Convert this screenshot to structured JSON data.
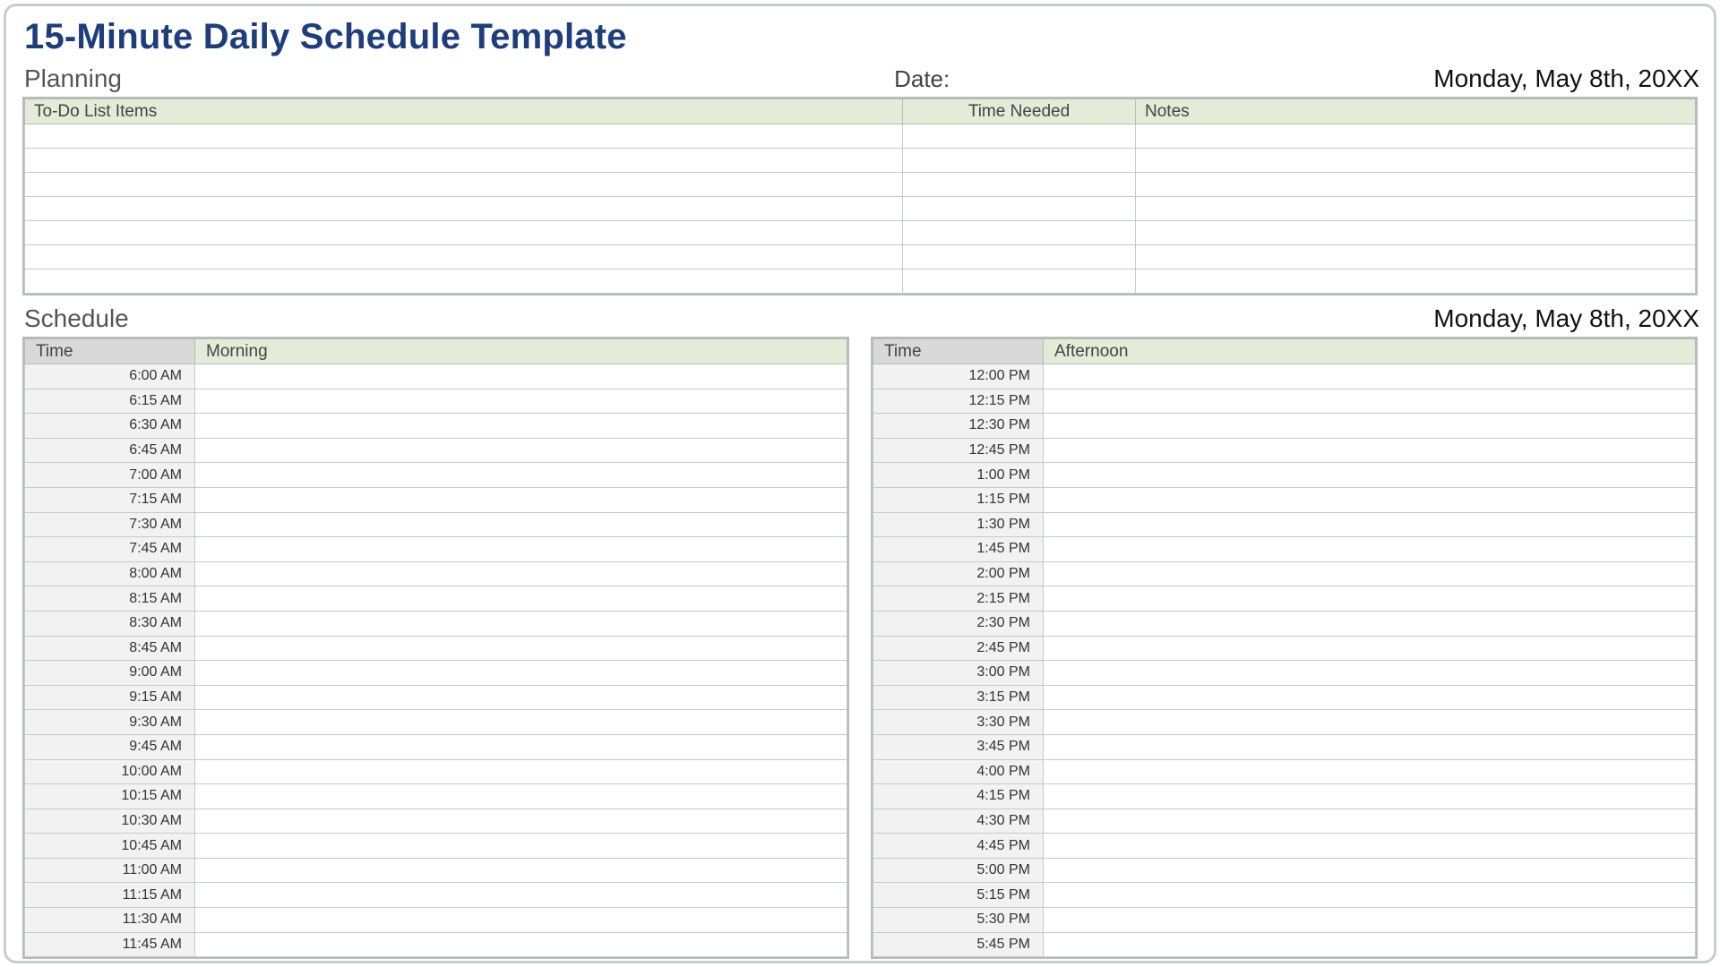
{
  "title": "15-Minute Daily Schedule Template",
  "sections": {
    "planning": "Planning",
    "schedule": "Schedule"
  },
  "date_label": "Date:",
  "date_value": "Monday, May 8th, 20XX",
  "todo": {
    "columns": {
      "items": "To-Do List Items",
      "time": "Time Needed",
      "notes": "Notes"
    },
    "row_count": 7
  },
  "schedule": {
    "time_header": "Time",
    "morning_label": "Morning",
    "afternoon_label": "Afternoon",
    "morning": [
      "6:00 AM",
      "6:15 AM",
      "6:30 AM",
      "6:45 AM",
      "7:00 AM",
      "7:15 AM",
      "7:30 AM",
      "7:45 AM",
      "8:00 AM",
      "8:15 AM",
      "8:30 AM",
      "8:45 AM",
      "9:00 AM",
      "9:15 AM",
      "9:30 AM",
      "9:45 AM",
      "10:00 AM",
      "10:15 AM",
      "10:30 AM",
      "10:45 AM",
      "11:00 AM",
      "11:15 AM",
      "11:30 AM",
      "11:45 AM"
    ],
    "afternoon": [
      "12:00 PM",
      "12:15 PM",
      "12:30 PM",
      "12:45 PM",
      "1:00 PM",
      "1:15 PM",
      "1:30 PM",
      "1:45 PM",
      "2:00 PM",
      "2:15 PM",
      "2:30 PM",
      "2:45 PM",
      "3:00 PM",
      "3:15 PM",
      "3:30 PM",
      "3:45 PM",
      "4:00 PM",
      "4:15 PM",
      "4:30 PM",
      "4:45 PM",
      "5:00 PM",
      "5:15 PM",
      "5:30 PM",
      "5:45 PM"
    ]
  },
  "style": {
    "title_color": "#1f3d7a",
    "header_green": "#e4ecd8",
    "header_gray": "#d9d9d9",
    "row_gray": "#f2f2f2",
    "border_color": "#b7bbbb",
    "grid_color": "#c6c9c9",
    "frame_border": "#c9cccd",
    "background": "#ffffff"
  }
}
